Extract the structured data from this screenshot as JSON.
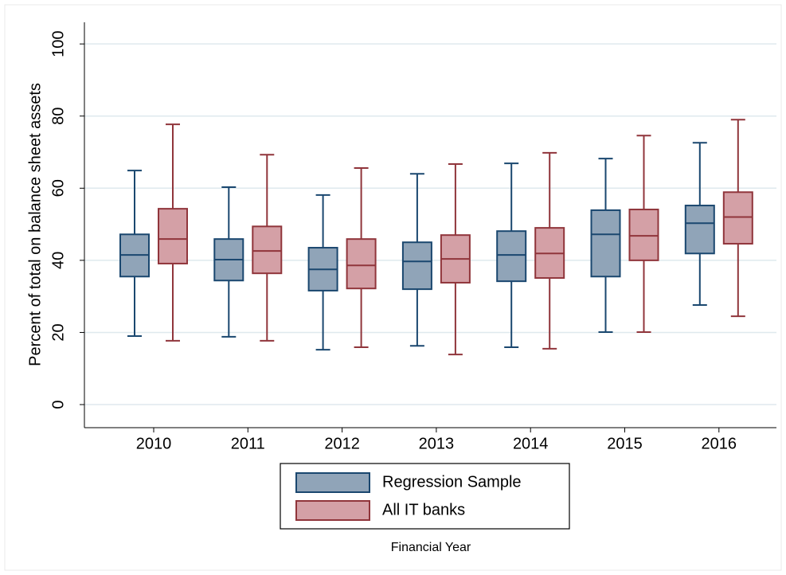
{
  "chart_data": {
    "type": "box",
    "y_label": "Percent of total on balance sheet assets",
    "x_label": "Financial Year",
    "categories": [
      "2010",
      "2011",
      "2012",
      "2013",
      "2014",
      "2015",
      "2016"
    ],
    "ylim": [
      -6.4,
      106
    ],
    "yticks": [
      0,
      20,
      40,
      60,
      80,
      100
    ],
    "grid": true,
    "series": [
      {
        "name": "Regression Sample",
        "color": "#1a476f",
        "fill": "#90a4b8",
        "min": [
          19.0,
          18.8,
          15.2,
          16.3,
          15.9,
          20.1,
          27.6
        ],
        "q1": [
          35.5,
          34.4,
          31.6,
          32.0,
          34.2,
          35.5,
          41.9
        ],
        "median": [
          41.5,
          40.2,
          37.5,
          39.7,
          41.5,
          47.2,
          50.3
        ],
        "q3": [
          47.2,
          45.9,
          43.5,
          45.0,
          48.1,
          53.9,
          55.2
        ],
        "max": [
          64.9,
          60.3,
          58.1,
          64.0,
          66.9,
          68.2,
          72.6
        ]
      },
      {
        "name": "All IT banks",
        "color": "#90353b",
        "fill": "#d4a0a6",
        "min": [
          17.7,
          17.7,
          15.9,
          13.9,
          15.5,
          20.1,
          24.5
        ],
        "q1": [
          39.1,
          36.4,
          32.2,
          33.8,
          35.1,
          40.0,
          44.6
        ],
        "median": [
          45.9,
          42.6,
          38.6,
          40.4,
          41.9,
          46.8,
          52.0
        ],
        "q3": [
          54.3,
          49.4,
          45.9,
          47.0,
          49.0,
          54.1,
          58.9
        ],
        "max": [
          77.7,
          69.3,
          65.6,
          66.7,
          69.8,
          74.6,
          79.0
        ]
      }
    ]
  }
}
